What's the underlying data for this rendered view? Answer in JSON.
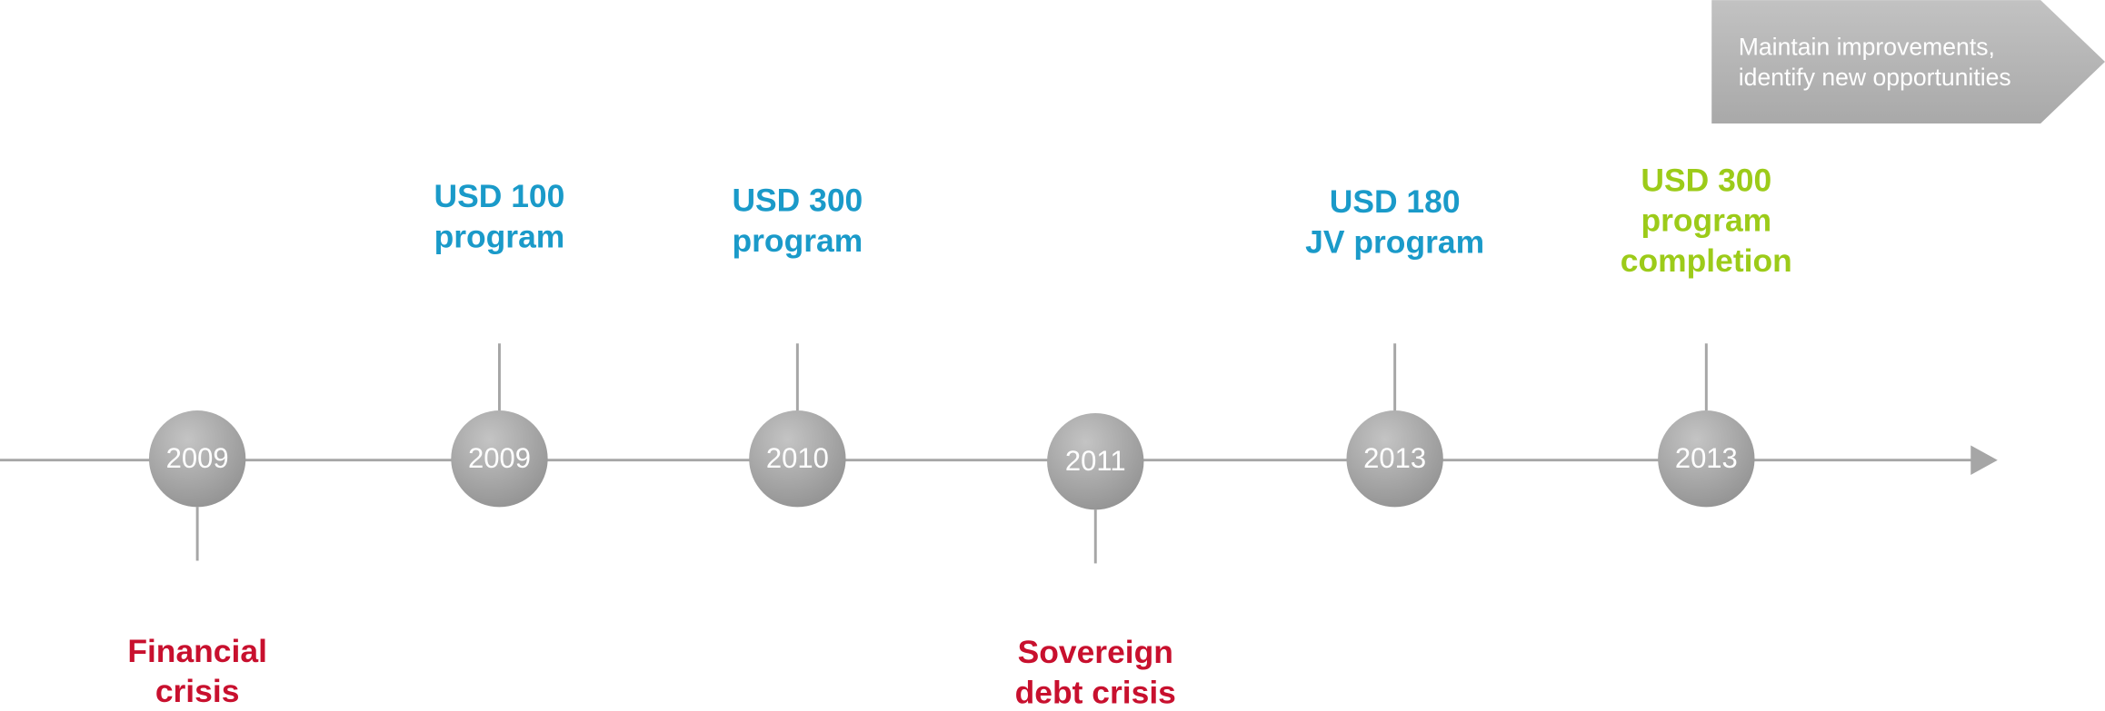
{
  "banner": {
    "lines": [
      "Maintain improvements,",
      "identify new opportunities"
    ]
  },
  "events": [
    {
      "year": "2009",
      "label": [
        "Financial",
        "crisis"
      ]
    },
    {
      "year": "2009",
      "label": [
        "USD 100",
        "program"
      ]
    },
    {
      "year": "2010",
      "label": [
        "USD 300",
        "program"
      ]
    },
    {
      "year": "2011",
      "label": [
        "Sovereign",
        "debt crisis"
      ]
    },
    {
      "year": "2013",
      "label": [
        "USD 180",
        "JV program"
      ]
    },
    {
      "year": "2013",
      "label": [
        "USD 300",
        "program",
        "completion"
      ]
    }
  ]
}
